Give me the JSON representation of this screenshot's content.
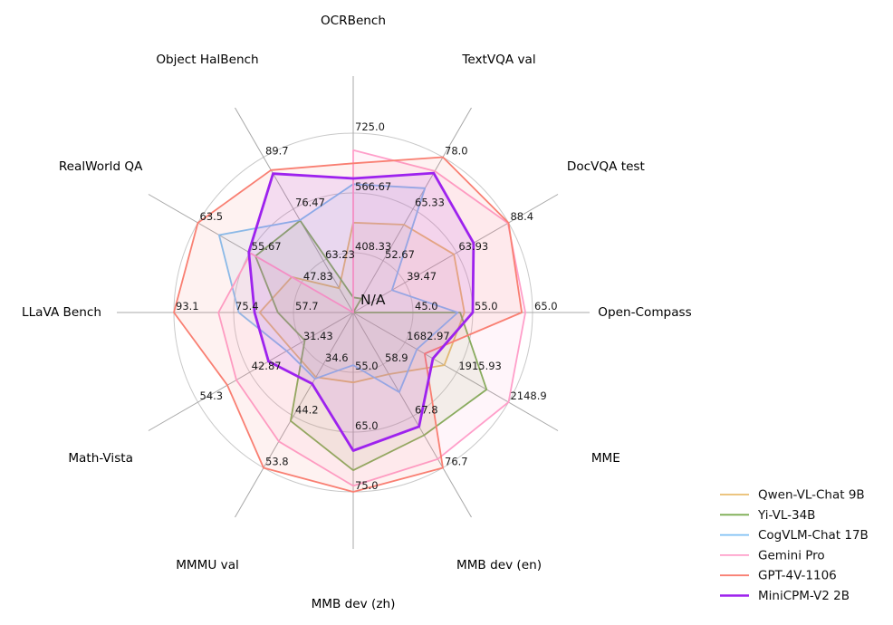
{
  "chart_data": {
    "type": "radar",
    "title": "",
    "grid": true,
    "center_label": "N/A",
    "legend_position": "bottom-right",
    "axes": [
      {
        "label": "OCRBench",
        "min": 250,
        "max": 725,
        "ticks": [
          "408.33",
          "566.67",
          "725.0"
        ]
      },
      {
        "label": "TextVQA val",
        "min": 40,
        "max": 78,
        "ticks": [
          "52.67",
          "65.33",
          "78.0"
        ]
      },
      {
        "label": "DocVQA test",
        "min": 15,
        "max": 88.4,
        "ticks": [
          "39.47",
          "63.93",
          "88.4"
        ]
      },
      {
        "label": "Open-Compass",
        "min": 35,
        "max": 65,
        "ticks": [
          "45.0",
          "55.0",
          "65.0"
        ]
      },
      {
        "label": "MME",
        "min": 1450,
        "max": 2148.9,
        "ticks": [
          "1682.97",
          "1915.93",
          "2148.9"
        ]
      },
      {
        "label": "MMB dev (en)",
        "min": 50,
        "max": 76.7,
        "ticks": [
          "58.9",
          "67.8",
          "76.7"
        ]
      },
      {
        "label": "MMB dev (zh)",
        "min": 45,
        "max": 75,
        "ticks": [
          "55.0",
          "65.0",
          "75.0"
        ]
      },
      {
        "label": "MMMU val",
        "min": 25,
        "max": 53.8,
        "ticks": [
          "34.6",
          "44.2",
          "53.8"
        ]
      },
      {
        "label": "Math-Vista",
        "min": 20,
        "max": 54.3,
        "ticks": [
          "31.43",
          "42.87",
          "54.3"
        ]
      },
      {
        "label": "LLaVA Bench",
        "min": 40,
        "max": 93.1,
        "ticks": [
          "57.7",
          "75.4",
          "93.1"
        ]
      },
      {
        "label": "RealWorld QA",
        "min": 40,
        "max": 63.5,
        "ticks": [
          "47.83",
          "55.67",
          "63.5"
        ]
      },
      {
        "label": "Object HalBench",
        "min": 50,
        "max": 89.7,
        "ticks": [
          "63.23",
          "76.47",
          "89.7"
        ]
      }
    ],
    "series": [
      {
        "name": "Qwen-VL-Chat 9B",
        "color": "#e9bd6e",
        "width": 1.8,
        "values": [
          488,
          61.5,
          62.6,
          53.6,
          1860.0,
          60.6,
          56.7,
          37.0,
          33.8,
          67.7,
          49.3,
          56.2
        ]
      },
      {
        "name": "Yi-VL-34B",
        "color": "#7cad52",
        "width": 1.8,
        "values": [
          290,
          43.4,
          null,
          52.9,
          2050.2,
          71.1,
          71.4,
          45.1,
          30.7,
          62.3,
          54.8,
          73.5
        ]
      },
      {
        "name": "CogVLM-Chat 17B",
        "color": "#7fc0f4",
        "width": 1.8,
        "values": [
          590,
          70.4,
          33.3,
          52.5,
          1736.6,
          63.7,
          53.8,
          37.3,
          34.7,
          73.9,
          60.3,
          73.6
        ]
      },
      {
        "name": "Gemini Pro",
        "color": "#ff9fca",
        "width": 1.8,
        "values": [
          680,
          74.6,
          88.1,
          63.8,
          2148.9,
          75.2,
          74.0,
          48.9,
          45.8,
          79.9,
          55.5,
          null
        ]
      },
      {
        "name": "GPT-4V-1106",
        "color": "#f97f72",
        "width": 1.8,
        "values": [
          645,
          78.0,
          88.4,
          63.2,
          1771.5,
          76.7,
          75.0,
          53.8,
          47.8,
          93.1,
          63.5,
          86.4
        ]
      },
      {
        "name": "MiniCPM-V2 2B",
        "color": "#9d22ee",
        "width": 2.8,
        "values": [
          605,
          74.1,
          71.9,
          55.0,
          1808.6,
          69.6,
          68.1,
          38.2,
          38.7,
          69.2,
          55.8,
          85.5
        ]
      }
    ],
    "style": {
      "ring_color": "#c9c9c9",
      "spoke_color": "#a8a8a8",
      "tick_color": "#1a1a1a",
      "axis_label_color": "#000000",
      "fill_opacity": 0.1
    }
  }
}
